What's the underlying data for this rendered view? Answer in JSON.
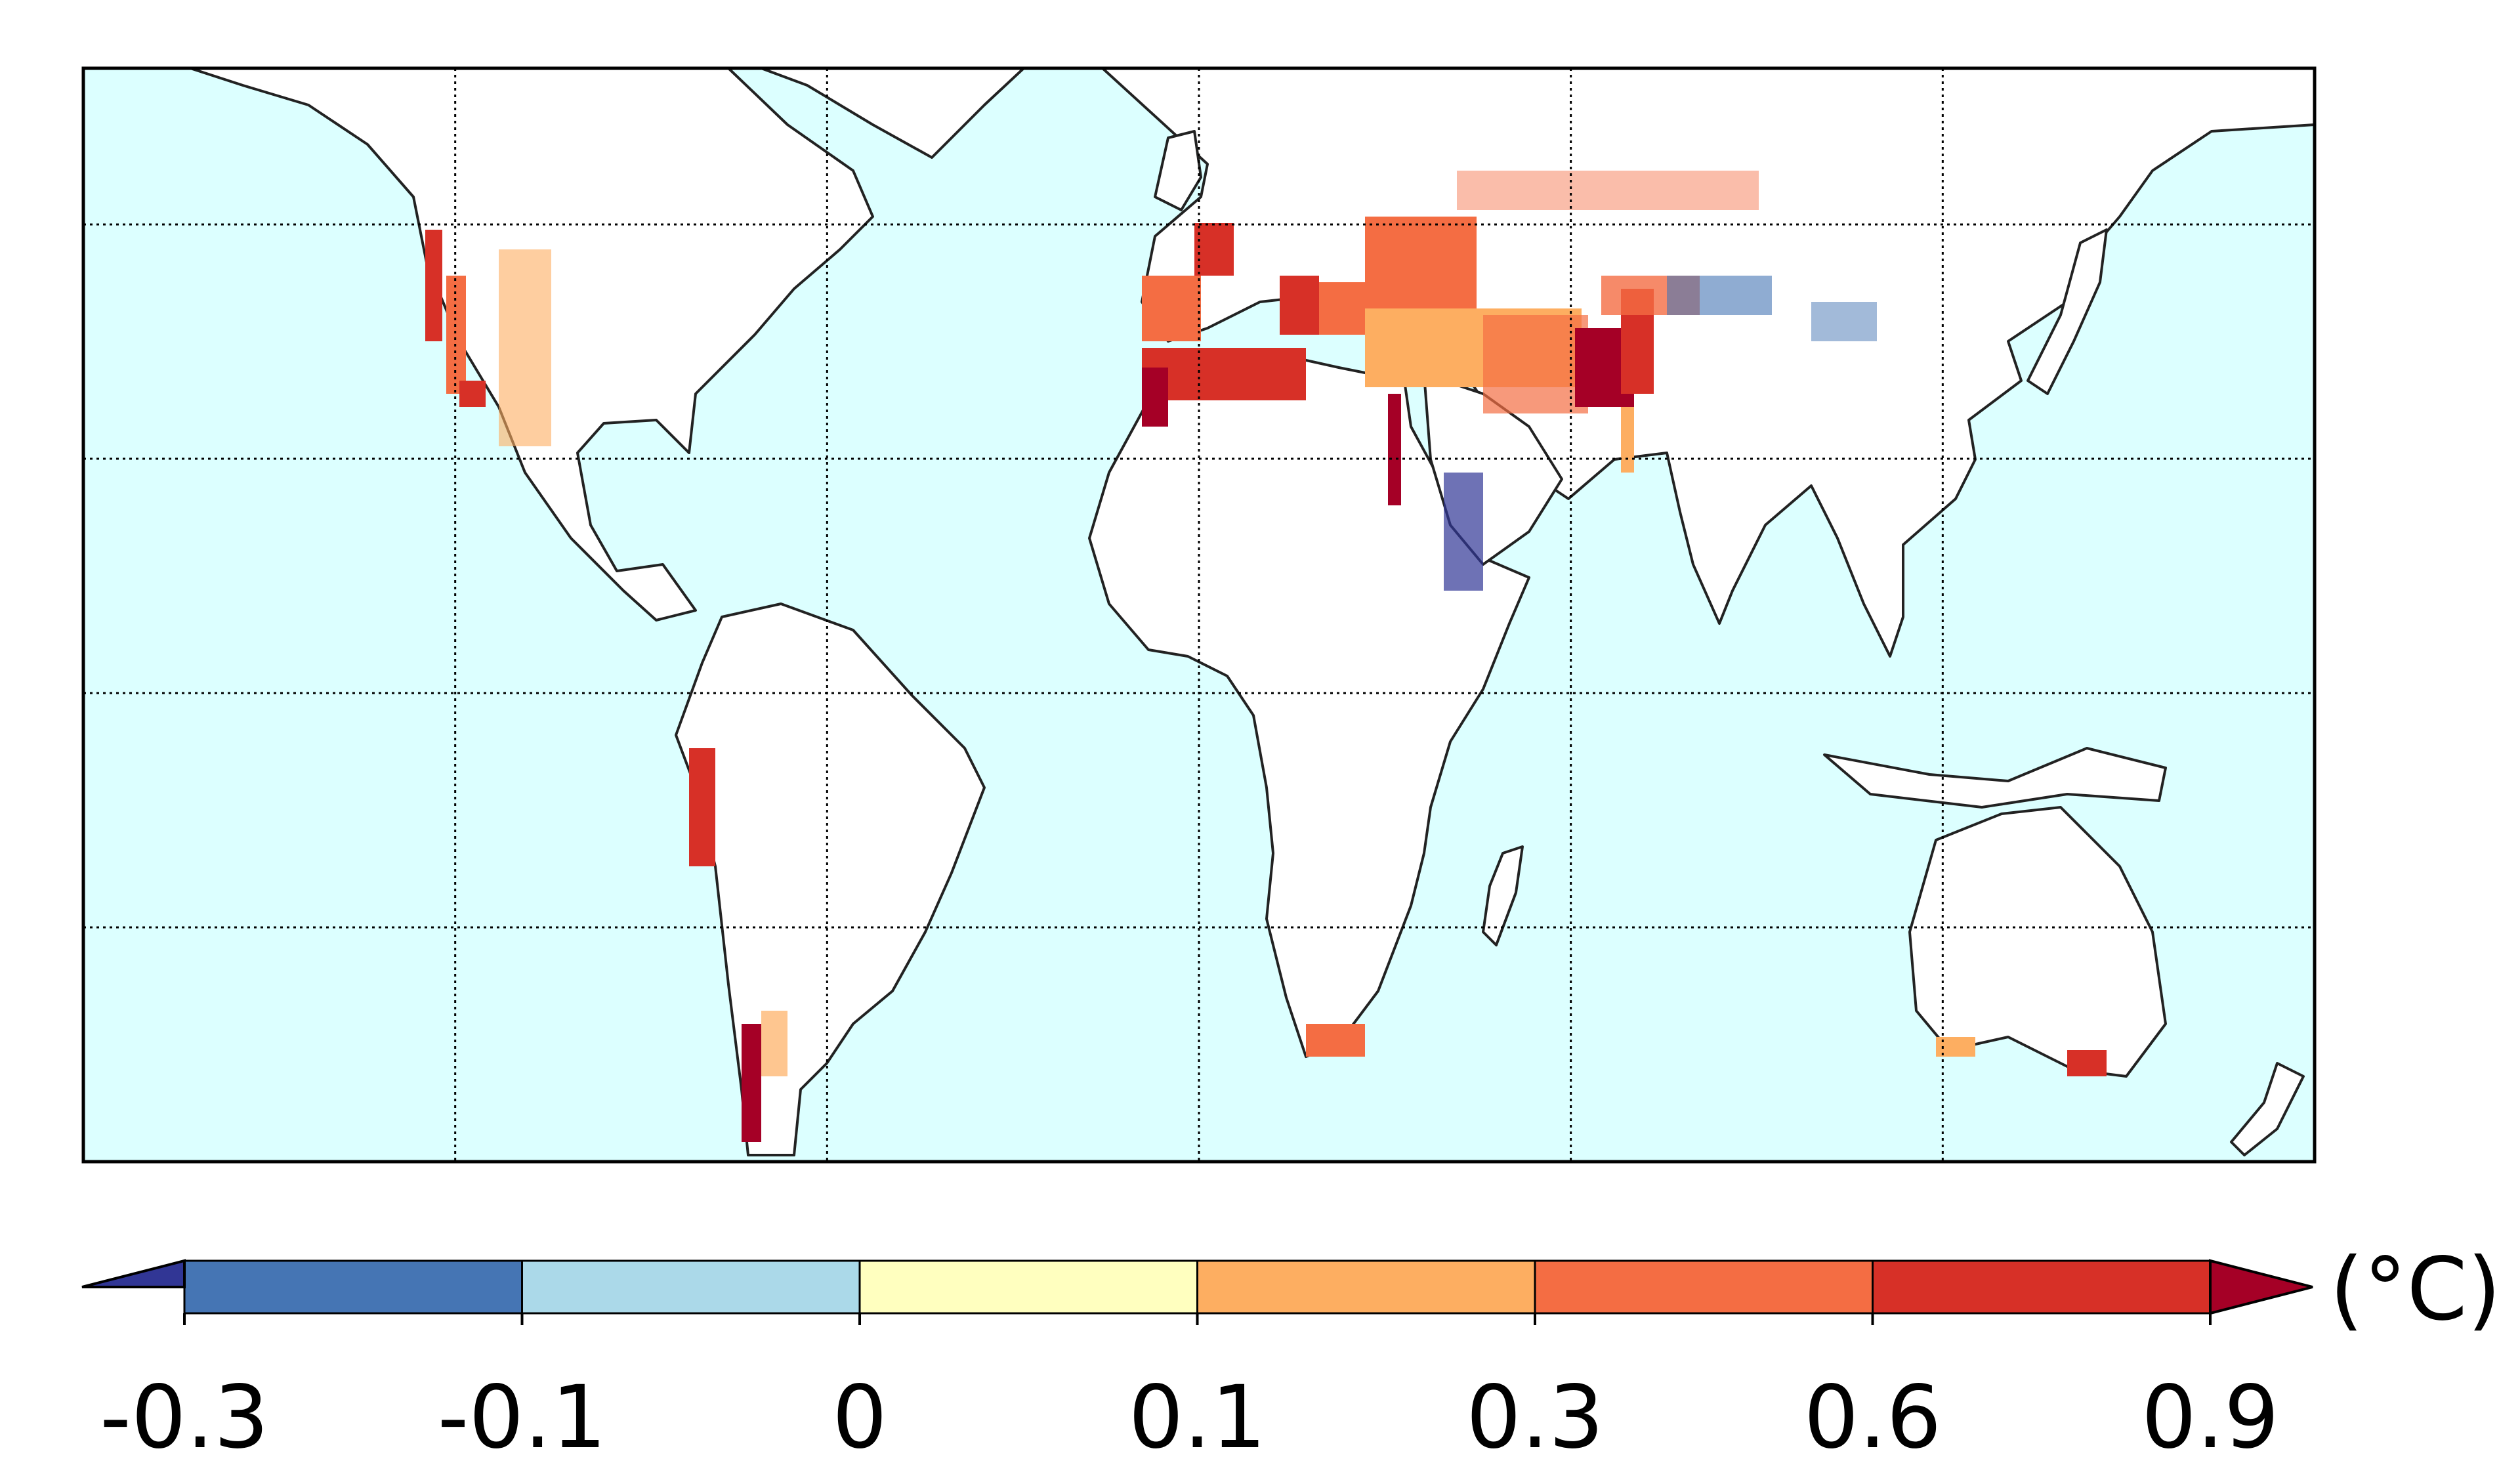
{
  "map": {
    "ocean_color": "#dcffff",
    "land_color": "#ffffff",
    "coast_color": "#222222",
    "grid": "dotted",
    "meridians_deg": [
      -120,
      -60,
      0,
      60,
      120
    ],
    "parallels_deg": [
      -60,
      -30,
      0,
      30,
      60
    ],
    "lon_range": [
      -180,
      180
    ],
    "lat_range": [
      -60,
      80
    ]
  },
  "colorbar": {
    "unit": "(°C)",
    "tick_labels": [
      "-0.3",
      "-0.1",
      "0",
      "0.1",
      "0.3",
      "0.6",
      "0.9"
    ],
    "bins": [
      {
        "from": -0.3,
        "to": -0.1,
        "color": "#4575b4"
      },
      {
        "from": -0.1,
        "to": 0,
        "color": "#abd9e9"
      },
      {
        "from": 0,
        "to": 0.1,
        "color": "#ffffbf"
      },
      {
        "from": 0.1,
        "to": 0.3,
        "color": "#fdae61"
      },
      {
        "from": 0.3,
        "to": 0.6,
        "color": "#f46d43"
      },
      {
        "from": 0.6,
        "to": 0.9,
        "color": "#d73027"
      }
    ],
    "under_color": "#313695",
    "over_color": "#a50026",
    "extend": "both"
  },
  "hotspots": [
    {
      "region": "Western US coast",
      "color": "#d73027"
    },
    {
      "region": "Mediterranean",
      "color": "#d73027"
    },
    {
      "region": "Maghreb",
      "color": "#d73027"
    },
    {
      "region": "Nile valley",
      "color": "#a50026"
    },
    {
      "region": "Turkey / Middle East",
      "color": "#f46d43"
    },
    {
      "region": "Northern India / Pakistan",
      "color": "#a50026"
    },
    {
      "region": "Andes / Chile",
      "color": "#d73027"
    },
    {
      "region": "Southern Australia",
      "color": "#f46d43"
    },
    {
      "region": "Red Sea coast",
      "color": "#313695"
    },
    {
      "region": "Northern China",
      "color": "#4575b4"
    }
  ]
}
